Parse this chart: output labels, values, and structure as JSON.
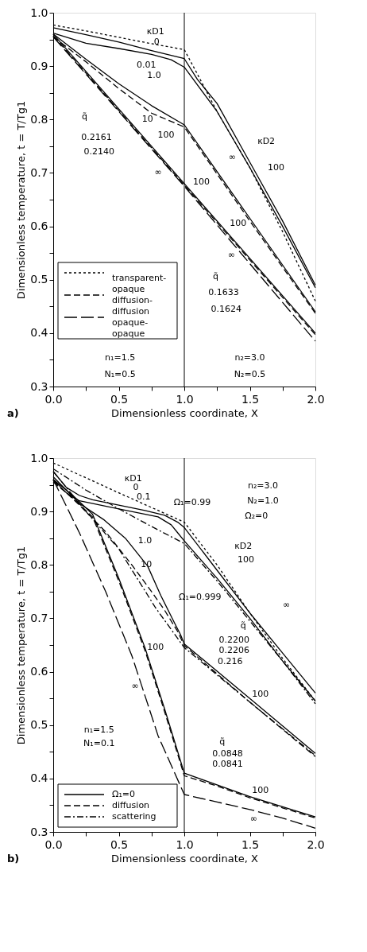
{
  "chart_data": [
    {
      "type": "line",
      "xlabel": "Dimensionless coordinate, X",
      "ylabel": "Dimensionless temperature, t = T/Tg1",
      "xlim": [
        0,
        2
      ],
      "ylim": [
        0.3,
        1.0
      ],
      "xticks": [
        {
          "value": 0,
          "label": "0.0"
        },
        {
          "value": 0.25,
          "label": null
        },
        {
          "value": 0.5,
          "label": "0.5"
        },
        {
          "value": 0.75,
          "label": null
        },
        {
          "value": 1,
          "label": "1.0"
        },
        {
          "value": 1.25,
          "label": null
        },
        {
          "value": 1.5,
          "label": "1.5"
        },
        {
          "value": 1.75,
          "label": null
        },
        {
          "value": 2,
          "label": "2.0"
        }
      ],
      "yticks": [
        {
          "value": 0.3,
          "label": "0.3"
        },
        {
          "value": 0.35,
          "label": null
        },
        {
          "value": 0.4,
          "label": "0.4"
        },
        {
          "value": 0.45,
          "label": null
        },
        {
          "value": 0.5,
          "label": "0.5"
        },
        {
          "value": 0.55,
          "label": null
        },
        {
          "value": 0.6,
          "label": "0.6"
        },
        {
          "value": 0.65,
          "label": null
        },
        {
          "value": 0.7,
          "label": "0.7"
        },
        {
          "value": 0.75,
          "label": null
        },
        {
          "value": 0.8,
          "label": "0.8"
        },
        {
          "value": 0.85,
          "label": null
        },
        {
          "value": 0.9,
          "label": "0.9"
        },
        {
          "value": 0.95,
          "label": null
        },
        {
          "value": 1.0,
          "label": "1.0"
        }
      ],
      "grid": false,
      "legend": "bottom left",
      "ref_lines": [
        {
          "axis": "x",
          "value": 1,
          "label": null,
          "color": "#000000"
        }
      ],
      "series": [
        {
          "name": "transparent-opaque",
          "color": "#000000",
          "line_style": "dotted",
          "x": [
            0,
            0.25,
            0.5,
            0.75,
            1,
            1.1,
            1.25,
            1.5,
            1.75,
            2
          ],
          "values": [
            0.977,
            0.966,
            0.954,
            0.942,
            0.931,
            0.885,
            0.815,
            0.71,
            0.59,
            0.46
          ]
        },
        {
          "name": "diffusion-diffusion",
          "color": "#000000",
          "line_style": "dashed",
          "x": [
            0,
            0.25,
            0.5,
            0.75,
            1,
            1.5,
            2
          ],
          "values": [
            0.955,
            0.908,
            0.858,
            0.812,
            0.786,
            0.61,
            0.437
          ]
        },
        {
          "name": "opaque-opaque",
          "color": "#000000",
          "line_style": "longdash",
          "x": [
            0,
            0.5,
            1,
            1.5,
            2
          ],
          "values": [
            0.955,
            0.815,
            0.675,
            0.53,
            0.385
          ]
        },
        {
          "color": "#000000",
          "line_style": "solid",
          "x": [
            0,
            0.25,
            0.5,
            0.75,
            1,
            1.1,
            1.25,
            1.5,
            1.75,
            2
          ],
          "values": [
            0.972,
            0.959,
            0.945,
            0.929,
            0.914,
            0.875,
            0.83,
            0.72,
            0.61,
            0.49
          ]
        },
        {
          "color": "#000000",
          "line_style": "solid",
          "x": [
            0,
            0.25,
            0.5,
            0.75,
            0.9,
            1,
            1.25,
            1.5,
            1.75,
            2
          ],
          "values": [
            0.962,
            0.943,
            0.933,
            0.922,
            0.912,
            0.898,
            0.815,
            0.71,
            0.6,
            0.485
          ]
        },
        {
          "color": "#000000",
          "line_style": "solid",
          "x": [
            0,
            0.25,
            0.5,
            0.75,
            1,
            1.5,
            2
          ],
          "values": [
            0.96,
            0.913,
            0.867,
            0.826,
            0.79,
            0.615,
            0.44
          ]
        },
        {
          "color": "#000000",
          "line_style": "solid",
          "x": [
            0,
            0.25,
            0.5,
            0.75,
            1,
            1.5,
            2
          ],
          "values": [
            0.96,
            0.89,
            0.82,
            0.75,
            0.68,
            0.54,
            0.4
          ]
        },
        {
          "color": "#000000",
          "line_style": "dashed",
          "x": [
            0,
            0.25,
            0.5,
            0.75,
            1,
            1.5,
            2
          ],
          "values": [
            0.957,
            0.887,
            0.817,
            0.747,
            0.677,
            0.537,
            0.397
          ]
        }
      ],
      "annotations": [
        "κD1",
        "0",
        "0.01",
        "1.0",
        "q̃",
        "0.2161",
        "0.2140",
        "10",
        "100",
        "∞",
        "100",
        "∞",
        "κD2",
        "100",
        "100",
        "∞",
        "q̃",
        "0.1633",
        "0.1624",
        "n₁=1.5",
        "N₁=0.5",
        "n₂=3.0",
        "N₂=0.5",
        "a)"
      ]
    },
    {
      "type": "line",
      "xlabel": "Dimensionless coordinate, X",
      "ylabel": "Dimensionless temperature, t = T/Tg1",
      "xlim": [
        0,
        2
      ],
      "ylim": [
        0.3,
        1.0
      ],
      "xticks": [
        {
          "value": 0,
          "label": "0.0"
        },
        {
          "value": 0.25,
          "label": null
        },
        {
          "value": 0.5,
          "label": "0.5"
        },
        {
          "value": 0.75,
          "label": null
        },
        {
          "value": 1,
          "label": "1.0"
        },
        {
          "value": 1.25,
          "label": null
        },
        {
          "value": 1.5,
          "label": "1.5"
        },
        {
          "value": 1.75,
          "label": null
        },
        {
          "value": 2,
          "label": "2.0"
        }
      ],
      "yticks": [
        {
          "value": 0.3,
          "label": "0.3"
        },
        {
          "value": 0.35,
          "label": null
        },
        {
          "value": 0.4,
          "label": "0.4"
        },
        {
          "value": 0.45,
          "label": null
        },
        {
          "value": 0.5,
          "label": "0.5"
        },
        {
          "value": 0.55,
          "label": null
        },
        {
          "value": 0.6,
          "label": "0.6"
        },
        {
          "value": 0.65,
          "label": null
        },
        {
          "value": 0.7,
          "label": "0.7"
        },
        {
          "value": 0.75,
          "label": null
        },
        {
          "value": 0.8,
          "label": "0.8"
        },
        {
          "value": 0.85,
          "label": null
        },
        {
          "value": 0.9,
          "label": "0.9"
        },
        {
          "value": 0.95,
          "label": null
        },
        {
          "value": 1.0,
          "label": "1.0"
        }
      ],
      "grid": false,
      "legend": "bottom left",
      "ref_lines": [
        {
          "axis": "x",
          "value": 1,
          "label": null,
          "color": "#000000"
        }
      ],
      "series": [
        {
          "name": "Ω₁=0",
          "color": "#000000",
          "line_style": "solid",
          "x": [
            0,
            0.1,
            0.2,
            0.3,
            0.5,
            0.7,
            0.85,
            0.95,
            1,
            1.25,
            1.5,
            1.75,
            2
          ],
          "values": [
            0.975,
            0.945,
            0.93,
            0.922,
            0.912,
            0.902,
            0.893,
            0.88,
            0.87,
            0.79,
            0.71,
            0.635,
            0.56
          ]
        },
        {
          "name": "diffusion",
          "color": "#000000",
          "line_style": "dashed",
          "x": [
            0,
            0.2,
            0.4,
            0.6,
            0.75,
            0.85,
            0.95,
            1,
            1.5,
            2
          ],
          "values": [
            0.958,
            0.912,
            0.862,
            0.8,
            0.75,
            0.715,
            0.675,
            0.649,
            0.543,
            0.441
          ]
        },
        {
          "name": "scattering",
          "color": "#000000",
          "line_style": "dashdot",
          "x": [
            0,
            0.25,
            0.5,
            0.75,
            1,
            1.25,
            1.5,
            1.75,
            2
          ],
          "values": [
            0.98,
            0.94,
            0.905,
            0.872,
            0.84,
            0.77,
            0.695,
            0.62,
            0.54
          ]
        },
        {
          "color": "#000000",
          "line_style": "solid",
          "x": [
            0,
            0.1,
            0.2,
            0.5,
            0.8,
            0.9,
            0.95,
            1,
            1.25,
            1.5,
            1.75,
            2
          ],
          "values": [
            0.96,
            0.935,
            0.92,
            0.905,
            0.89,
            0.875,
            0.86,
            0.845,
            0.775,
            0.7,
            0.62,
            0.545
          ]
        },
        {
          "color": "#000000",
          "line_style": "dotted",
          "x": [
            0,
            0.5,
            1,
            1.25,
            1.5,
            1.75,
            2
          ],
          "values": [
            0.991,
            0.935,
            0.88,
            0.8,
            0.71,
            0.625,
            0.545
          ]
        },
        {
          "color": "#000000",
          "line_style": "solid",
          "x": [
            0,
            0.2,
            0.39,
            0.55,
            0.72,
            0.82,
            0.93,
            0.97,
            1,
            1.5,
            2
          ],
          "values": [
            0.965,
            0.915,
            0.884,
            0.85,
            0.798,
            0.743,
            0.689,
            0.67,
            0.652,
            0.55,
            0.447
          ]
        },
        {
          "color": "#000000",
          "line_style": "dashdot",
          "x": [
            0,
            0.25,
            0.5,
            0.78,
            1,
            1.5,
            2
          ],
          "values": [
            0.975,
            0.9,
            0.83,
            0.72,
            0.645,
            0.543,
            0.443
          ]
        },
        {
          "color": "#000000",
          "line_style": "solid",
          "x": [
            0,
            0.15,
            0.3,
            0.5,
            0.7,
            0.85,
            1,
            1.25,
            1.5,
            1.75,
            2
          ],
          "values": [
            0.96,
            0.93,
            0.895,
            0.775,
            0.645,
            0.53,
            0.41,
            0.388,
            0.366,
            0.347,
            0.328
          ]
        },
        {
          "color": "#000000",
          "line_style": "dashed",
          "x": [
            0,
            0.15,
            0.3,
            0.5,
            0.7,
            0.85,
            1,
            1.25,
            1.5,
            1.75,
            2
          ],
          "values": [
            0.955,
            0.925,
            0.89,
            0.77,
            0.64,
            0.525,
            0.405,
            0.386,
            0.364,
            0.345,
            0.326
          ]
        },
        {
          "color": "#000000",
          "line_style": "longdash",
          "x": [
            0,
            0.2,
            0.4,
            0.6,
            0.8,
            1,
            1.25,
            1.5,
            1.75,
            2
          ],
          "values": [
            0.96,
            0.86,
            0.75,
            0.63,
            0.48,
            0.37,
            0.356,
            0.342,
            0.326,
            0.307
          ]
        }
      ],
      "annotations": [
        "κD1",
        "0",
        "0.1",
        "Ω₁=0.99",
        "n₂=3.0",
        "N₂=1.0",
        "Ω₂=0",
        "1.0",
        "κD2",
        "100",
        "10",
        "Ω₁=0.999",
        "∞",
        "q̃",
        "0.2200",
        "0.2206",
        "0.216",
        "100",
        "100",
        "∞",
        "n₁=1.5",
        "N₁=0.1",
        "q̃",
        "0.0848",
        "0.0841",
        "100",
        "∞",
        "b)"
      ]
    }
  ]
}
